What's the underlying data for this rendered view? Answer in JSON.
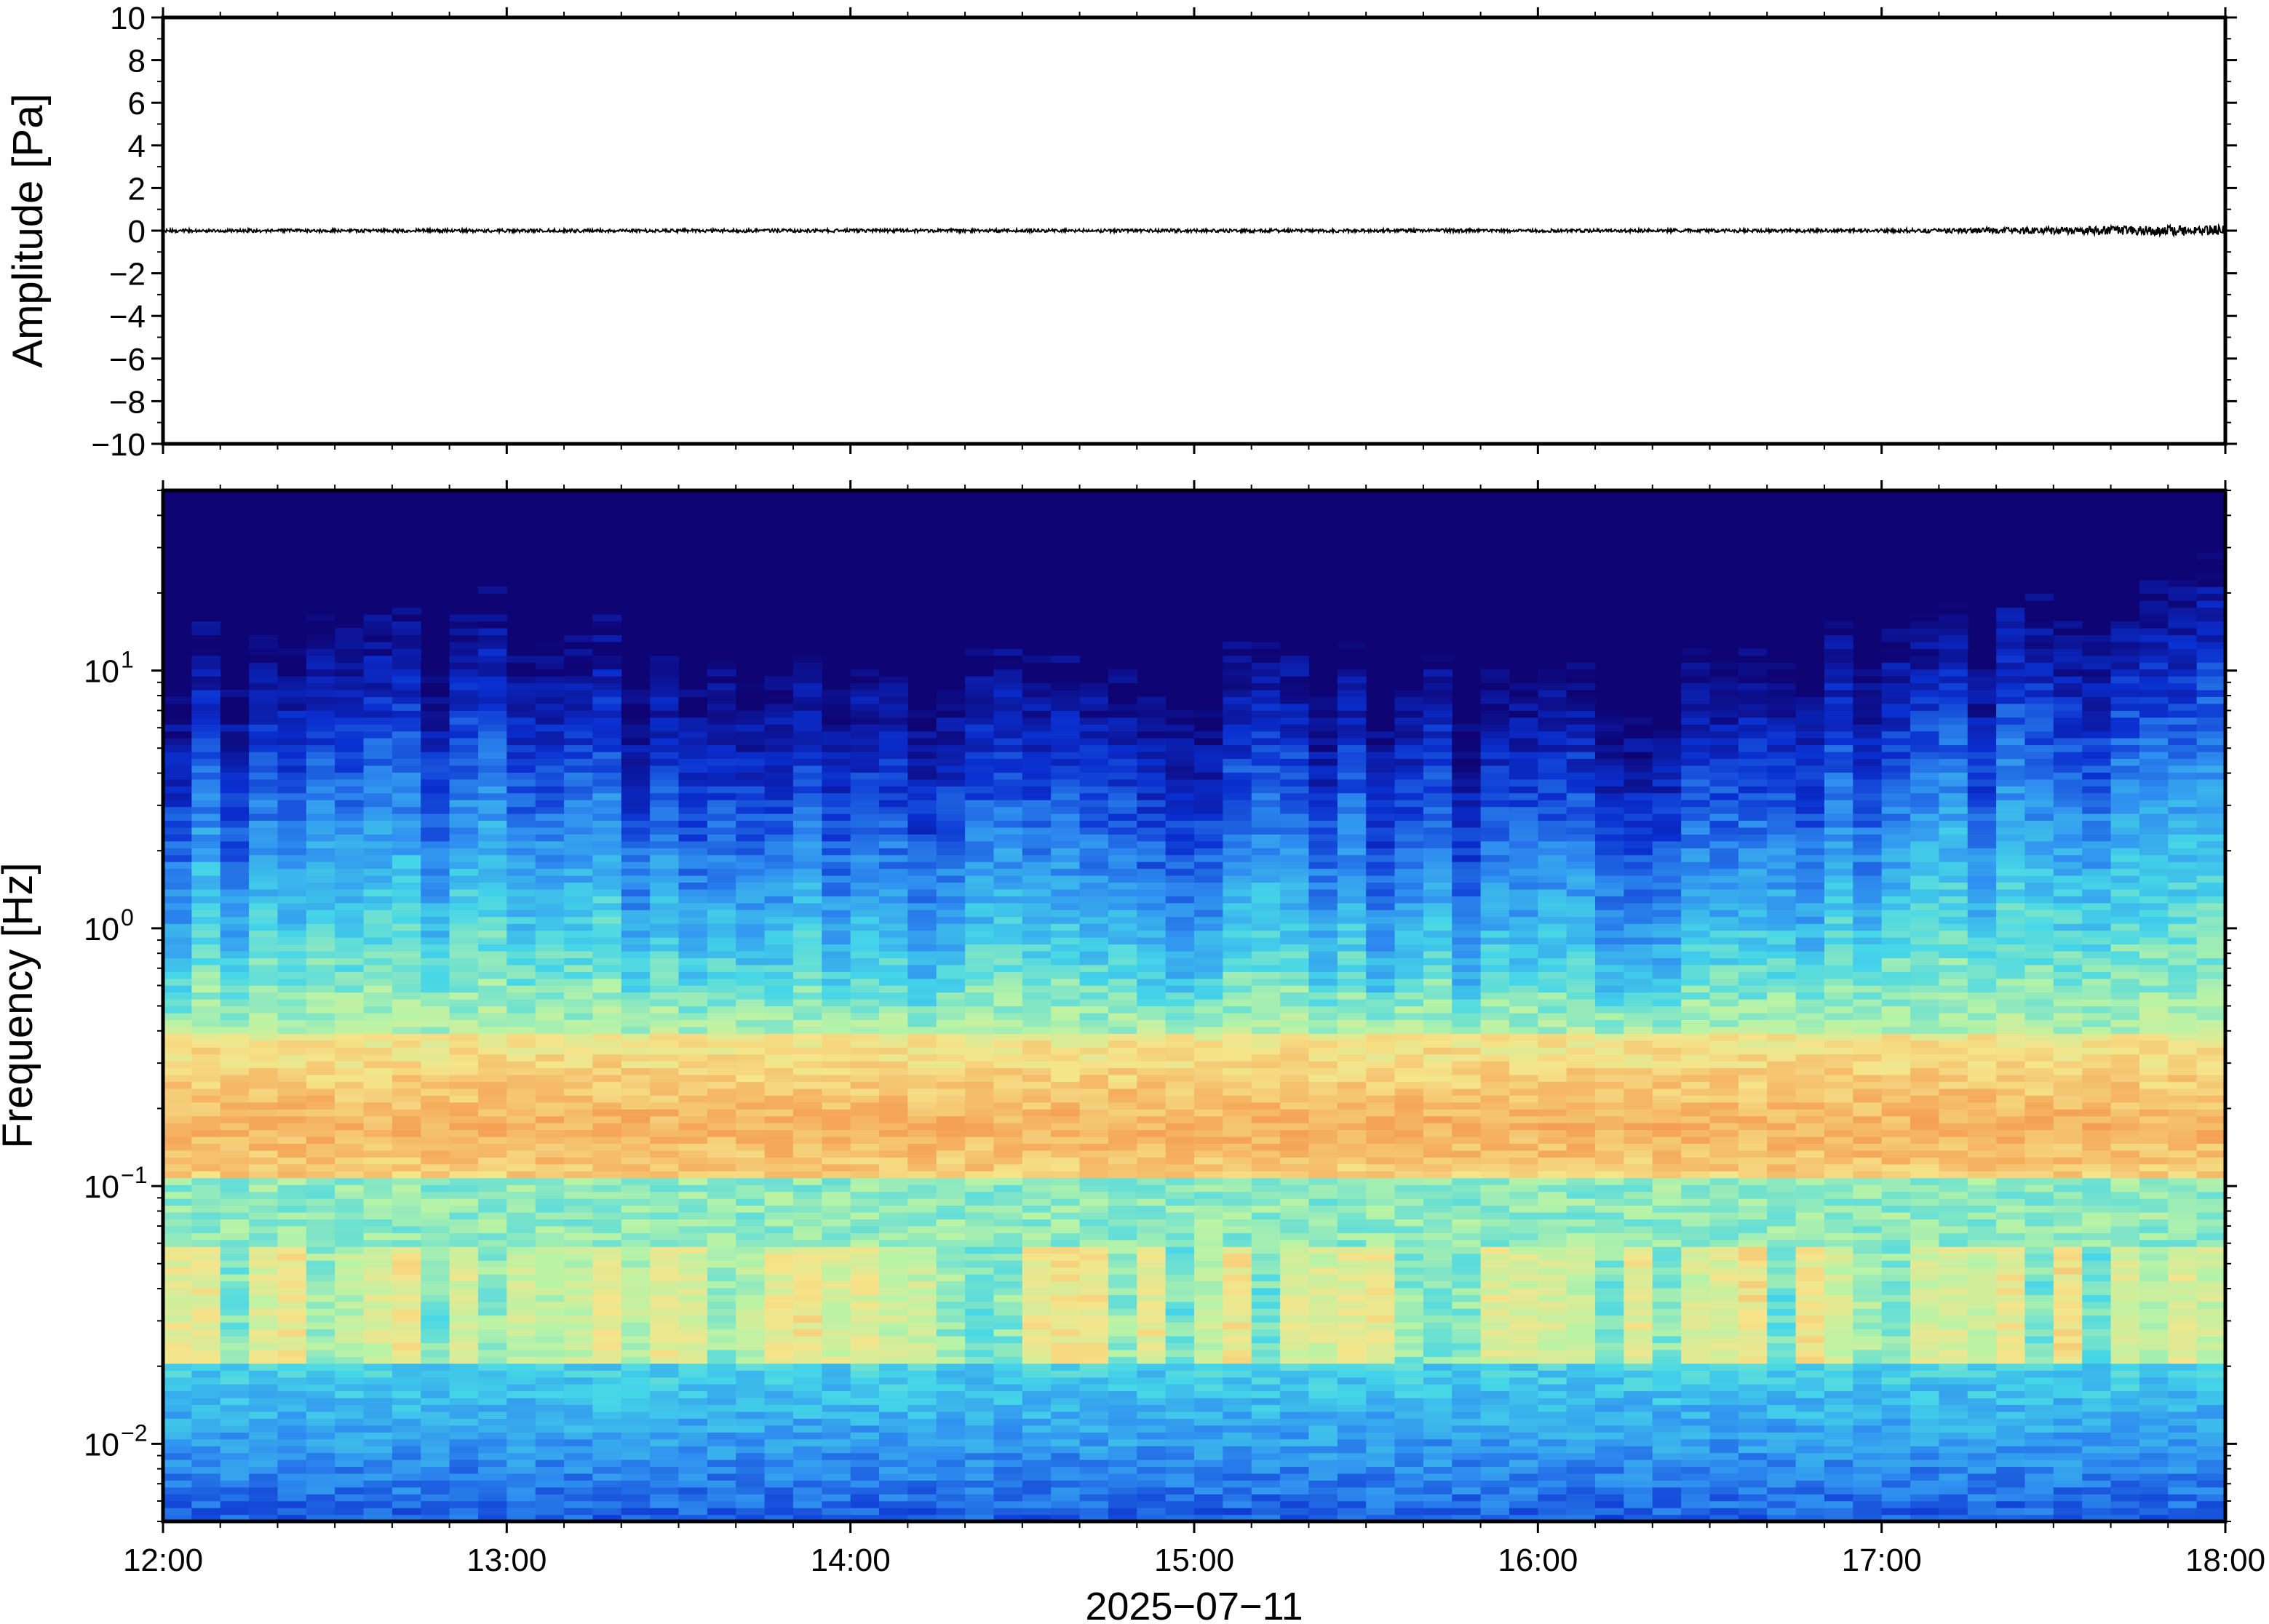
{
  "chart_data": [
    {
      "type": "line",
      "ylabel": "Amplitude [Pa]",
      "ylim": [
        -10,
        10
      ],
      "y_ticks": [
        10,
        8,
        6,
        4,
        2,
        0,
        -2,
        -4,
        -6,
        -8,
        -10
      ],
      "y_tick_labels": [
        "10",
        "8",
        "6",
        "4",
        "2",
        "0",
        "−2",
        "−4",
        "−6",
        "−8",
        "−10"
      ],
      "x_range": [
        "12:00",
        "18:00"
      ],
      "series": [
        {
          "x": [
            "12:00",
            "12:30",
            "13:00",
            "13:30",
            "14:00",
            "14:30",
            "15:00",
            "15:30",
            "16:00",
            "16:30",
            "17:00",
            "17:30",
            "18:00"
          ],
          "y": [
            0,
            0,
            0,
            0,
            0,
            0,
            0,
            0,
            0,
            0,
            0,
            0,
            0
          ],
          "color": "#000000"
        }
      ]
    },
    {
      "type": "heatmap",
      "ylabel": "Frequency [Hz]",
      "yscale": "log",
      "ylim": [
        0.005,
        50
      ],
      "y_ticks": [
        0.01,
        0.1,
        1,
        10
      ],
      "y_tick_labels": [
        {
          "base": "10",
          "exp": "−2"
        },
        {
          "base": "10",
          "exp": "−1"
        },
        {
          "base": "10",
          "exp": "0"
        },
        {
          "base": "10",
          "exp": "1"
        }
      ],
      "xlabel": "2025−07−11",
      "x_tick_labels": [
        "12:00",
        "13:00",
        "14:00",
        "15:00",
        "16:00",
        "17:00",
        "18:00"
      ],
      "x_range": [
        "12:00",
        "18:00"
      ],
      "colormap": [
        "#0e0474",
        "#0a2fd0",
        "#2f8ef0",
        "#45d6e8",
        "#b8f3a6",
        "#f5e48a",
        "#f5a85a",
        "#f08040"
      ],
      "upper_cutoff_hz": [
        {
          "time": "12:00",
          "hz": 8
        },
        {
          "time": "12:30",
          "hz": 10
        },
        {
          "time": "13:00",
          "hz": 11
        },
        {
          "time": "13:30",
          "hz": 8
        },
        {
          "time": "14:00",
          "hz": 6
        },
        {
          "time": "14:30",
          "hz": 7
        },
        {
          "time": "15:00",
          "hz": 7
        },
        {
          "time": "15:30",
          "hz": 7
        },
        {
          "time": "16:00",
          "hz": 6
        },
        {
          "time": "16:30",
          "hz": 7
        },
        {
          "time": "17:00",
          "hz": 10
        },
        {
          "time": "17:30",
          "hz": 13
        },
        {
          "time": "18:00",
          "hz": 16
        }
      ],
      "microseism_peak_hz": 0.17,
      "high_energy_band_hz": [
        0.02,
        0.06
      ]
    }
  ]
}
